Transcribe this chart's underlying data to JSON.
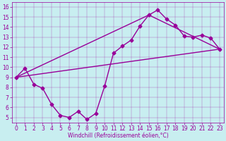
{
  "xlabel": "Windchill (Refroidissement éolien,°C)",
  "xlim": [
    -0.5,
    23.5
  ],
  "ylim": [
    4.5,
    16.5
  ],
  "xticks": [
    0,
    1,
    2,
    3,
    4,
    5,
    6,
    7,
    8,
    9,
    10,
    11,
    12,
    13,
    14,
    15,
    16,
    17,
    18,
    19,
    20,
    21,
    22,
    23
  ],
  "yticks": [
    5,
    6,
    7,
    8,
    9,
    10,
    11,
    12,
    13,
    14,
    15,
    16
  ],
  "bg_color": "#c8eef0",
  "line_color": "#990099",
  "line1_x": [
    0,
    1,
    2,
    3,
    4,
    5,
    6,
    7,
    8,
    9,
    10,
    11,
    12,
    13,
    14,
    15,
    16,
    17,
    18,
    19,
    20,
    21,
    22,
    23
  ],
  "line1_y": [
    9.0,
    9.9,
    8.3,
    7.9,
    6.3,
    5.2,
    5.0,
    5.6,
    4.8,
    5.4,
    8.1,
    11.4,
    12.1,
    12.7,
    14.1,
    15.2,
    15.7,
    14.8,
    14.2,
    13.1,
    13.0,
    13.2,
    12.9,
    11.8
  ],
  "line2_x": [
    0,
    23
  ],
  "line2_y": [
    9.0,
    11.8
  ],
  "line3_x": [
    0,
    15,
    23
  ],
  "line3_y": [
    9.0,
    15.2,
    11.8
  ],
  "marker": "D",
  "markersize": 2.5,
  "linewidth": 1.0,
  "tick_labelsize": 5.5,
  "xlabel_fontsize": 5.5
}
